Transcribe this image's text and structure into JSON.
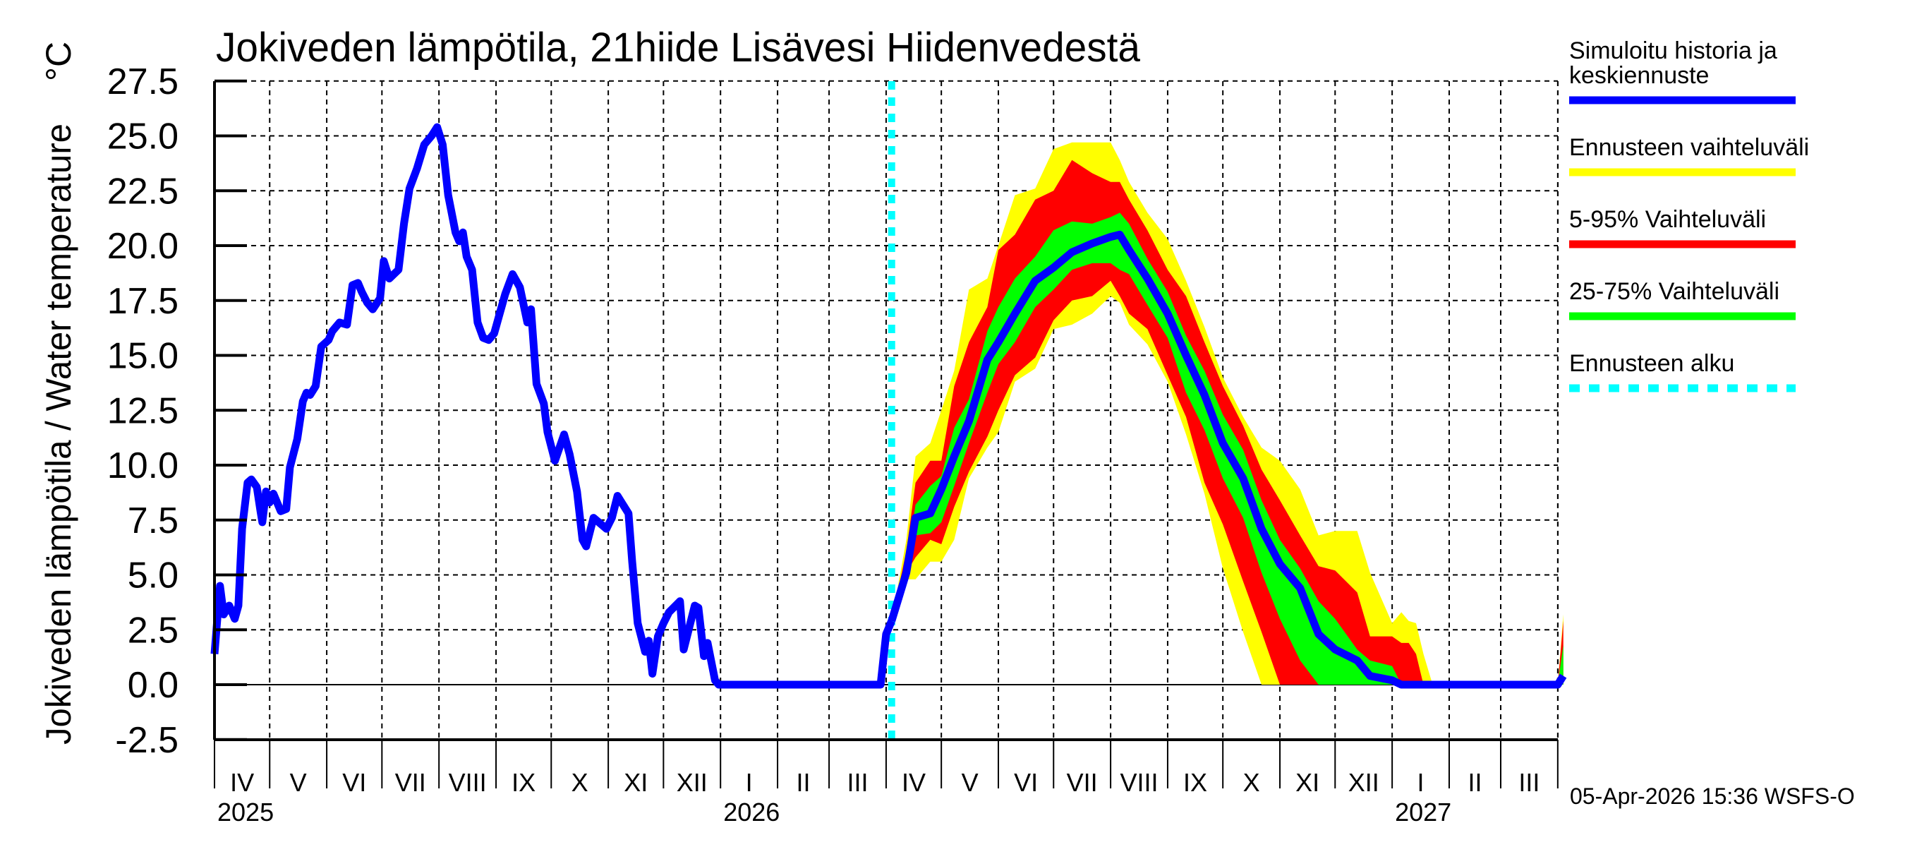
{
  "chart_data": {
    "type": "line",
    "title": "Jokiveden lämpötila, 21hiide Lisävesi Hiidenvedestä",
    "ylabel": "Jokiveden lämpötila / Water temperature",
    "yunit": "°C",
    "ylim": [
      -2.5,
      27.5
    ],
    "yticks": [
      "27.5",
      "25.0",
      "22.5",
      "20.0",
      "17.5",
      "15.0",
      "12.5",
      "10.0",
      "7.5",
      "5.0",
      "2.5",
      "0.0",
      "-2.5"
    ],
    "xlim": [
      "2025-04-01",
      "2027-04-02"
    ],
    "month_labels": [
      "IV",
      "V",
      "VI",
      "VII",
      "VIII",
      "IX",
      "X",
      "XI",
      "XII",
      "I",
      "II",
      "III",
      "IV",
      "V",
      "VI",
      "VII",
      "VIII",
      "IX",
      "X",
      "XI",
      "XII",
      "I",
      "II",
      "III"
    ],
    "year_labels": [
      {
        "label": "2025",
        "date": "2025-04-01"
      },
      {
        "label": "2026",
        "date": "2026-01-01"
      },
      {
        "label": "2027",
        "date": "2027-01-01"
      }
    ],
    "grid": true,
    "legend_position": "right",
    "forecast_start": "2026-04-04",
    "colors": {
      "median": "#0000ff",
      "range": "#ffff00",
      "p5_95": "#ff0000",
      "p25_75": "#00ff00",
      "forecast_start": "#00ffff"
    },
    "legend": [
      {
        "key": "median",
        "label_lines": [
          "Simuloitu historia ja",
          "keskiennuste"
        ],
        "style": "solid"
      },
      {
        "key": "range",
        "label_lines": [
          "Ennusteen vaihteluväli"
        ],
        "style": "solid"
      },
      {
        "key": "p5_95",
        "label_lines": [
          "5-95% Vaihteluväli"
        ],
        "style": "solid"
      },
      {
        "key": "p25_75",
        "label_lines": [
          "25-75% Vaihteluväli"
        ],
        "style": "solid"
      },
      {
        "key": "forecast_start",
        "label_lines": [
          "Ennusteen alku"
        ],
        "style": "dashed"
      }
    ],
    "history": {
      "x": [
        "2025-04-01",
        "2025-04-04",
        "2025-04-06",
        "2025-04-09",
        "2025-04-12",
        "2025-04-14",
        "2025-04-16",
        "2025-04-19",
        "2025-04-21",
        "2025-04-24",
        "2025-04-26",
        "2025-04-27",
        "2025-04-29",
        "2025-05-01",
        "2025-05-03",
        "2025-05-07",
        "2025-05-10",
        "2025-05-12",
        "2025-05-16",
        "2025-05-19",
        "2025-05-21",
        "2025-05-23",
        "2025-05-26",
        "2025-05-29",
        "2025-06-02",
        "2025-06-04",
        "2025-06-08",
        "2025-06-12",
        "2025-06-15",
        "2025-06-18",
        "2025-06-20",
        "2025-06-23",
        "2025-06-26",
        "2025-06-30",
        "2025-07-02",
        "2025-07-05",
        "2025-07-10",
        "2025-07-13",
        "2025-07-16",
        "2025-07-20",
        "2025-07-24",
        "2025-07-28",
        "2025-07-31",
        "2025-08-03",
        "2025-08-06",
        "2025-08-10",
        "2025-08-12",
        "2025-08-14",
        "2025-08-16",
        "2025-08-19",
        "2025-08-22",
        "2025-08-25",
        "2025-08-28",
        "2025-08-31",
        "2025-09-03",
        "2025-09-06",
        "2025-09-10",
        "2025-09-14",
        "2025-09-18",
        "2025-09-20",
        "2025-09-23",
        "2025-09-27",
        "2025-09-29",
        "2025-10-03",
        "2025-10-08",
        "2025-10-11",
        "2025-10-15",
        "2025-10-18",
        "2025-10-20",
        "2025-10-24",
        "2025-10-31",
        "2025-11-03",
        "2025-11-06",
        "2025-11-09",
        "2025-11-12",
        "2025-11-14",
        "2025-11-17",
        "2025-11-21",
        "2025-11-23",
        "2025-11-25",
        "2025-11-28",
        "2025-12-01",
        "2025-12-04",
        "2025-12-10",
        "2025-12-12",
        "2025-12-18",
        "2025-12-20",
        "2025-12-23",
        "2025-12-25",
        "2025-12-29",
        "2025-12-31",
        "2026-03-29",
        "2026-04-01",
        "2026-04-04"
      ],
      "y": [
        1.4,
        4.5,
        3.2,
        3.6,
        3.0,
        3.6,
        7.1,
        9.2,
        9.35,
        9.0,
        7.9,
        7.4,
        8.8,
        8.3,
        8.7,
        7.9,
        8.0,
        9.9,
        11.2,
        12.9,
        13.3,
        13.2,
        13.6,
        15.4,
        15.7,
        16.1,
        16.5,
        16.4,
        18.2,
        18.3,
        17.9,
        17.4,
        17.1,
        17.6,
        19.3,
        18.5,
        18.9,
        21.0,
        22.6,
        23.5,
        24.6,
        25.0,
        25.4,
        24.6,
        22.3,
        20.6,
        20.2,
        20.6,
        19.5,
        18.9,
        16.5,
        15.8,
        15.7,
        16.0,
        16.9,
        17.8,
        18.7,
        18.1,
        16.5,
        17.1,
        13.7,
        12.8,
        11.5,
        10.2,
        11.4,
        10.5,
        8.8,
        6.6,
        6.3,
        7.6,
        7.1,
        7.6,
        8.6,
        8.2,
        7.8,
        5.6,
        2.8,
        1.5,
        2.0,
        0.5,
        2.2,
        2.8,
        3.3,
        3.8,
        1.6,
        3.6,
        3.5,
        1.3,
        1.9,
        0.2,
        0.0,
        0.0,
        2.3,
        2.9
      ]
    },
    "forecast": {
      "x": [
        "2026-04-04",
        "2026-04-12",
        "2026-04-17",
        "2026-04-25",
        "2026-05-01",
        "2026-05-08",
        "2026-05-16",
        "2026-05-26",
        "2026-06-01",
        "2026-06-10",
        "2026-06-21",
        "2026-07-01",
        "2026-07-11",
        "2026-07-22",
        "2026-08-01",
        "2026-08-06",
        "2026-08-11",
        "2026-08-21",
        "2026-09-01",
        "2026-09-11",
        "2026-09-21",
        "2026-10-01",
        "2026-10-12",
        "2026-10-22",
        "2026-11-01",
        "2026-11-12",
        "2026-11-22",
        "2026-12-01",
        "2026-12-13",
        "2026-12-20",
        "2027-01-01",
        "2027-01-06",
        "2027-01-10",
        "2027-01-14",
        "2027-01-18",
        "2027-01-23",
        "2027-04-01",
        "2027-04-04"
      ],
      "median": [
        2.9,
        5.1,
        7.6,
        7.8,
        8.9,
        10.4,
        12.0,
        14.8,
        15.6,
        16.9,
        18.4,
        19.0,
        19.7,
        20.1,
        20.4,
        20.5,
        19.8,
        18.5,
        16.9,
        15.0,
        13.2,
        11.0,
        9.4,
        7.1,
        5.5,
        4.4,
        2.3,
        1.6,
        1.1,
        0.4,
        0.2,
        0,
        0,
        0,
        0,
        0,
        0,
        0.4
      ],
      "p25": [
        2.9,
        4.9,
        6.8,
        6.9,
        7.4,
        9.05,
        11.0,
        13.3,
        14.6,
        15.6,
        17.2,
        18.0,
        18.9,
        19.2,
        19.2,
        18.9,
        18.7,
        17.3,
        15.8,
        13.3,
        11.6,
        9.4,
        7.6,
        5.1,
        3.0,
        1.1,
        0,
        0,
        0,
        0,
        0,
        0,
        0,
        0,
        0,
        0,
        0,
        0
      ],
      "p75": [
        2.9,
        5.4,
        8.2,
        9.05,
        9.5,
        11.7,
        13.0,
        16.1,
        17.2,
        18.5,
        19.5,
        20.7,
        21.1,
        21.0,
        21.3,
        21.5,
        21.0,
        19.4,
        17.9,
        15.9,
        14.3,
        12.3,
        10.7,
        8.4,
        6.6,
        5.3,
        3.8,
        3.0,
        1.6,
        1.1,
        0.85,
        0,
        0,
        0,
        0,
        0,
        0,
        1.8
      ],
      "p5": [
        2.9,
        5.1,
        5.8,
        6.6,
        6.4,
        8.1,
        9.7,
        11.3,
        12.5,
        14.1,
        14.9,
        16.6,
        17.5,
        17.7,
        18.4,
        17.7,
        16.9,
        16.2,
        14.1,
        12.2,
        9.2,
        7.3,
        4.7,
        2.4,
        0,
        0,
        0,
        0,
        0,
        0,
        0,
        0,
        0,
        0,
        0,
        0,
        0,
        0
      ],
      "p95": [
        2.9,
        6.1,
        9.2,
        10.2,
        10.2,
        13.6,
        15.6,
        17.2,
        19.8,
        20.5,
        22.1,
        22.5,
        23.9,
        23.3,
        22.9,
        22.9,
        22.1,
        20.7,
        18.9,
        17.7,
        15.6,
        13.6,
        11.8,
        9.8,
        8.4,
        6.8,
        5.4,
        5.2,
        4.2,
        2.2,
        2.2,
        1.9,
        1.9,
        1.4,
        0,
        0,
        0,
        2.9
      ],
      "min": [
        2.9,
        4.8,
        4.8,
        5.6,
        5.6,
        6.6,
        9.4,
        10.8,
        11.5,
        13.8,
        14.4,
        16.2,
        16.4,
        16.9,
        17.7,
        17.4,
        16.4,
        15.5,
        13.8,
        11.4,
        8.7,
        5.3,
        2.4,
        0,
        0,
        0,
        0,
        0,
        0,
        0,
        0,
        0,
        0,
        0,
        0,
        0,
        0,
        0
      ],
      "max": [
        2.9,
        6.6,
        10.4,
        11.0,
        12.5,
        14.3,
        18.0,
        18.5,
        20.0,
        22.3,
        22.6,
        24.4,
        24.7,
        24.7,
        24.7,
        23.9,
        22.9,
        21.5,
        20.3,
        18.4,
        16.3,
        14.0,
        12.2,
        10.8,
        10.2,
        8.9,
        6.8,
        7.0,
        7.0,
        5.1,
        2.8,
        3.3,
        2.9,
        2.8,
        1.4,
        0,
        0,
        3.2
      ]
    }
  },
  "footer": {
    "timestamp": "05-Apr-2026 15:36 WSFS-O"
  }
}
